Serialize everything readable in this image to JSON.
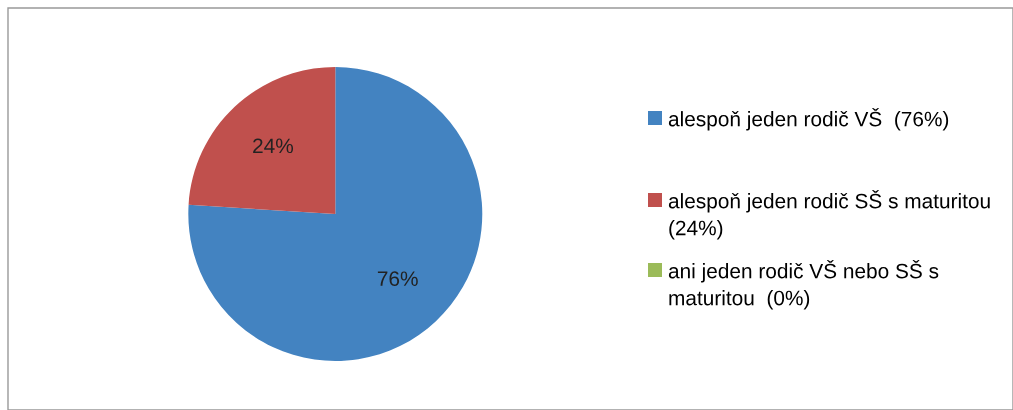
{
  "chart_data": {
    "type": "pie",
    "categories": [
      "alespoň jeden rodič VŠ  (76%)",
      "alespoň jeden rodič SŠ s maturitou  (24%)",
      "ani jeden rodič VŠ nebo SŠ s maturitou  (0%)"
    ],
    "values": [
      76,
      24,
      0
    ],
    "colors": [
      "#4383c1",
      "#c0504d",
      "#9bbb59"
    ],
    "value_labels": [
      "76%",
      "24%",
      null
    ],
    "legend": "right"
  }
}
